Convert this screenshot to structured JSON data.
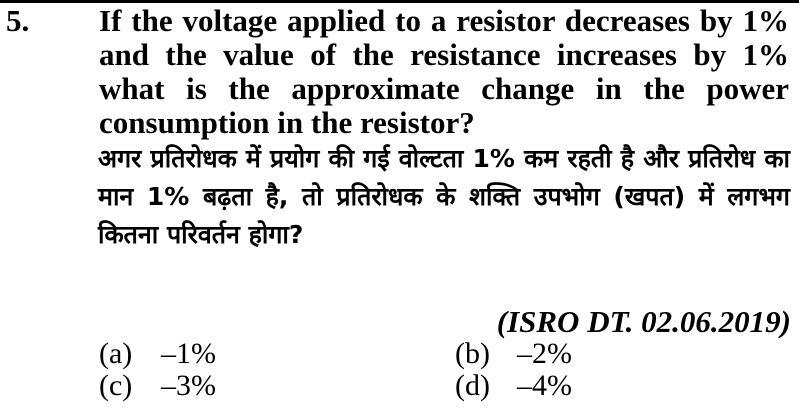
{
  "question": {
    "number": "5.",
    "text_en": "If the voltage applied to a resistor decreases by 1% and the value of the resistance increases by 1% what is the approximate change in the power consumption in the resistor?",
    "text_hi": "अगर प्रतिरोधक में प्रयोग की गई वोल्टता 1% कम रहती है और प्रतिरोध का मान 1% बढ़ता है, तो प्रतिरोधक के शक्ति उपभोग (खपत) में लगभग कितना परिवर्तन होगा?",
    "source": "(ISRO DT. 02.06.2019)"
  },
  "options": [
    {
      "label": "(a)",
      "value": "–1%"
    },
    {
      "label": "(b)",
      "value": "–2%"
    },
    {
      "label": "(c)",
      "value": "–3%"
    },
    {
      "label": "(d)",
      "value": "–4%"
    }
  ]
}
